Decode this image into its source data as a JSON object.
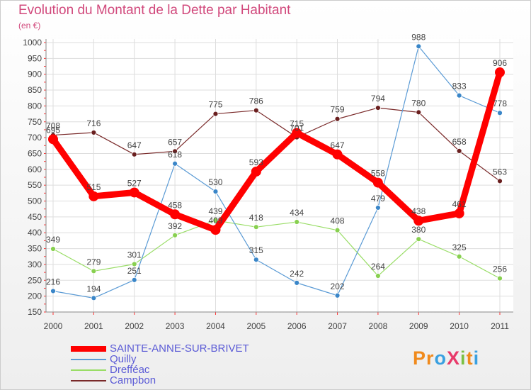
{
  "title": "Evolution du Montant de la Dette par Habitant",
  "subtitle": "(en €)",
  "logo": {
    "text": "ProXiti"
  },
  "chart_data": {
    "type": "line",
    "title": "Evolution du Montant de la Dette par Habitant",
    "subtitle": "(en €)",
    "xlabel": "",
    "ylabel": "",
    "ylim": [
      150,
      1000
    ],
    "yticks": [
      150,
      200,
      250,
      300,
      350,
      400,
      450,
      500,
      550,
      600,
      650,
      700,
      750,
      800,
      850,
      900,
      950,
      1000
    ],
    "categories": [
      "2000",
      "2001",
      "2002",
      "2003",
      "2004",
      "2005",
      "2006",
      "2007",
      "2008",
      "2009",
      "2010",
      "2011"
    ],
    "legend_position": "bottom-left",
    "series": [
      {
        "name": "SAINTE-ANNE-SUR-BRIVET",
        "color": "#ff0000",
        "values": [
          695,
          515,
          527,
          458,
          409,
          593,
          715,
          647,
          558,
          438,
          461,
          906
        ]
      },
      {
        "name": "Quilly",
        "color": "#5b9bd5",
        "values": [
          216,
          194,
          251,
          618,
          530,
          315,
          242,
          202,
          479,
          988,
          833,
          778
        ]
      },
      {
        "name": "Drefféac",
        "color": "#99dd66",
        "values": [
          349,
          279,
          301,
          392,
          439,
          418,
          434,
          408,
          264,
          380,
          325,
          256
        ]
      },
      {
        "name": "Campbon",
        "color": "#7a2a2a",
        "values": [
          708,
          716,
          647,
          657,
          775,
          786,
          701,
          759,
          794,
          780,
          658,
          563
        ]
      }
    ]
  }
}
